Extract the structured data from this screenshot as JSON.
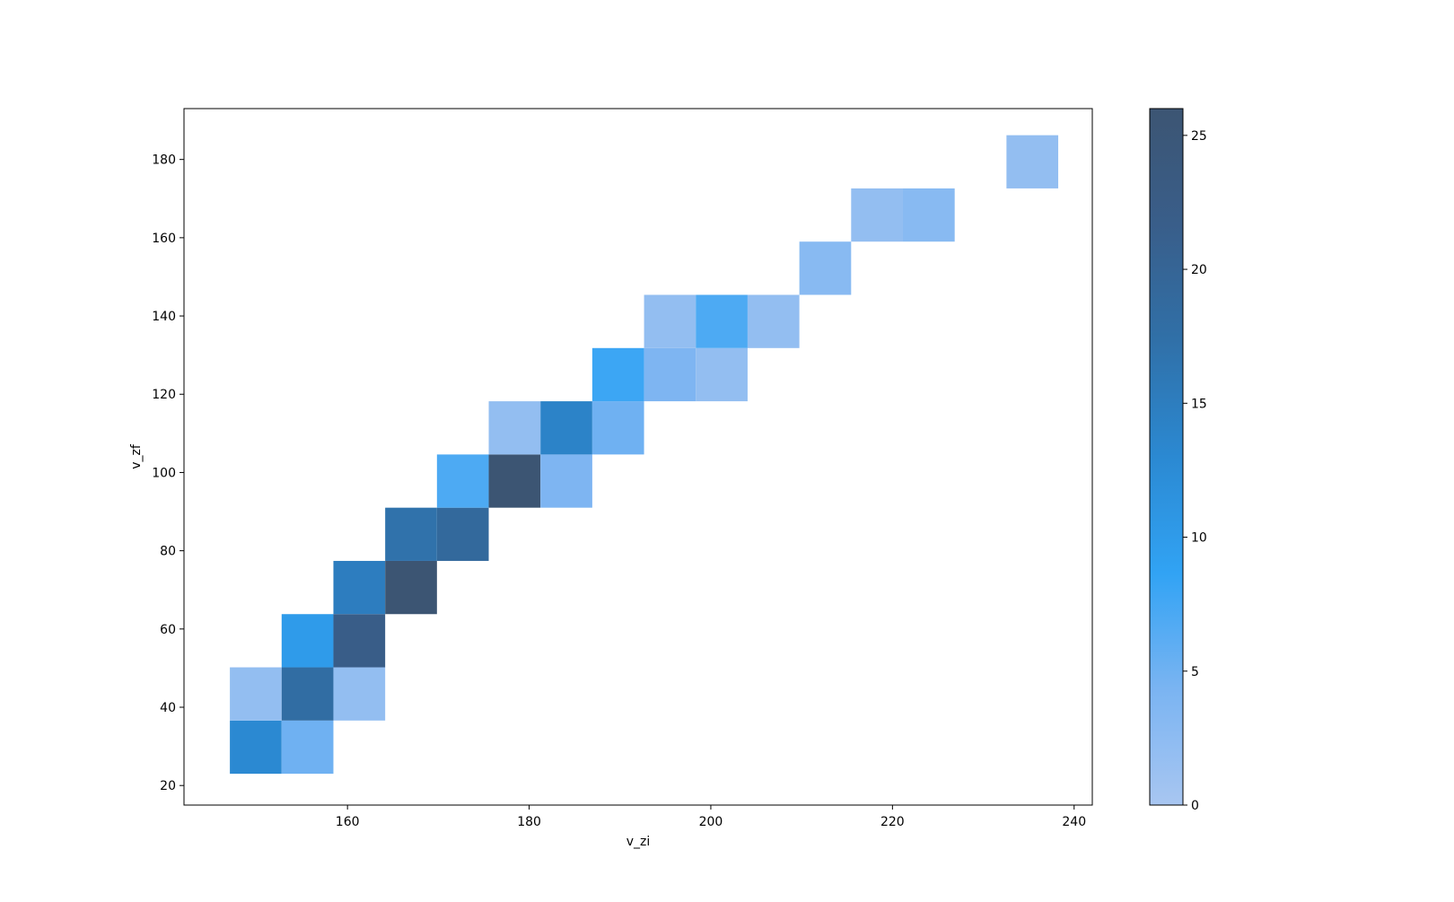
{
  "chart_data": {
    "type": "heatmap",
    "title": "",
    "xlabel": "v_zi",
    "ylabel": "v_zf",
    "xlim": [
      142.0,
      242.0
    ],
    "ylim": [
      15.0,
      193.0
    ],
    "xticks": [
      160,
      180,
      200,
      220,
      240
    ],
    "yticks": [
      20,
      40,
      60,
      80,
      100,
      120,
      140,
      160,
      180
    ],
    "bin_width_x": 5.7,
    "bin_height_y": 13.6,
    "cells": [
      {
        "x": 149.9,
        "y": 29.8,
        "count": 13
      },
      {
        "x": 155.6,
        "y": 29.8,
        "count": 5
      },
      {
        "x": 149.9,
        "y": 43.4,
        "count": 2
      },
      {
        "x": 155.6,
        "y": 43.4,
        "count": 18
      },
      {
        "x": 161.3,
        "y": 43.4,
        "count": 2
      },
      {
        "x": 155.6,
        "y": 57.0,
        "count": 10
      },
      {
        "x": 161.3,
        "y": 57.0,
        "count": 22
      },
      {
        "x": 161.3,
        "y": 70.6,
        "count": 15
      },
      {
        "x": 167.0,
        "y": 70.6,
        "count": 26
      },
      {
        "x": 167.0,
        "y": 84.2,
        "count": 17
      },
      {
        "x": 172.7,
        "y": 84.2,
        "count": 19
      },
      {
        "x": 172.7,
        "y": 97.8,
        "count": 7
      },
      {
        "x": 178.4,
        "y": 97.8,
        "count": 26
      },
      {
        "x": 184.1,
        "y": 97.8,
        "count": 4
      },
      {
        "x": 178.4,
        "y": 111.4,
        "count": 2
      },
      {
        "x": 184.1,
        "y": 111.4,
        "count": 14
      },
      {
        "x": 189.8,
        "y": 111.4,
        "count": 5
      },
      {
        "x": 189.8,
        "y": 125.0,
        "count": 8
      },
      {
        "x": 195.5,
        "y": 125.0,
        "count": 4
      },
      {
        "x": 201.2,
        "y": 125.0,
        "count": 2
      },
      {
        "x": 195.5,
        "y": 138.6,
        "count": 2
      },
      {
        "x": 201.2,
        "y": 138.6,
        "count": 7
      },
      {
        "x": 206.9,
        "y": 138.6,
        "count": 2
      },
      {
        "x": 212.6,
        "y": 152.2,
        "count": 3
      },
      {
        "x": 218.3,
        "y": 165.8,
        "count": 2
      },
      {
        "x": 224.0,
        "y": 165.8,
        "count": 3
      },
      {
        "x": 235.4,
        "y": 179.4,
        "count": 2
      }
    ],
    "colorbar": {
      "min": 0,
      "max": 26,
      "ticks": [
        0,
        5,
        10,
        15,
        20,
        25
      ],
      "colors": [
        "#a8c6f1",
        "#7ab4f2",
        "#31a3f4",
        "#2b89d2",
        "#3070a8",
        "#395e8a",
        "#3c5573"
      ]
    },
    "grid": false,
    "legend": "none"
  }
}
